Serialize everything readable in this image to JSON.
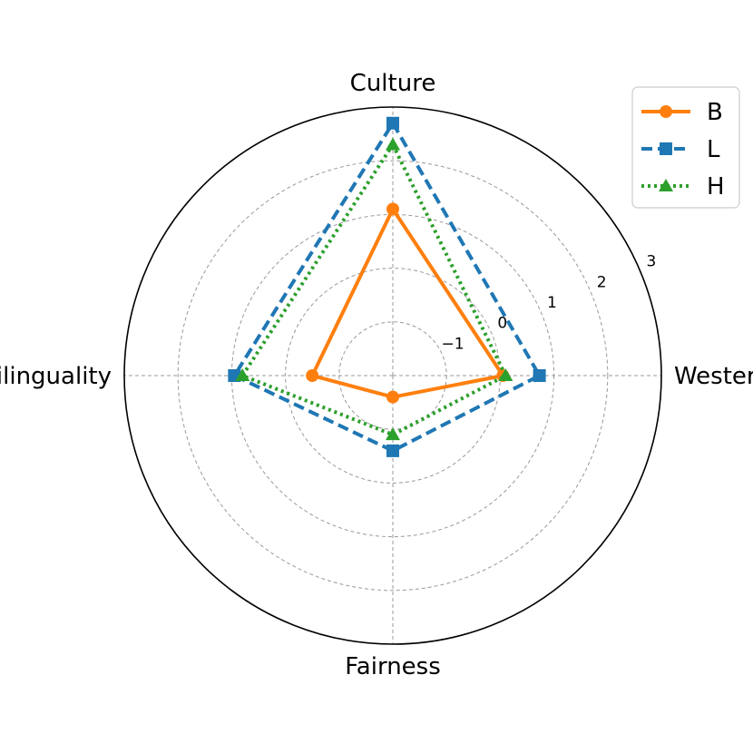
{
  "chart_data": {
    "type": "radar",
    "axes": [
      "Culture",
      "Western",
      "Fairness",
      "Multilinguality"
    ],
    "r_range": [
      -2,
      3
    ],
    "r_ticks": [
      -1,
      0,
      1,
      2,
      3
    ],
    "r_tick_labels": [
      "−1",
      "0",
      "1",
      "2",
      "3"
    ],
    "grid": true,
    "legend_position": "top-right",
    "series": [
      {
        "name": "B",
        "values": [
          1.1,
          0.05,
          -1.6,
          -0.5
        ],
        "color": "#ff7f0e",
        "dash": "solid",
        "marker": "circle"
      },
      {
        "name": "L",
        "values": [
          2.7,
          0.73,
          -0.6,
          0.95
        ],
        "color": "#1f77b4",
        "dash": "dashed",
        "marker": "square"
      },
      {
        "name": "H",
        "values": [
          2.3,
          0.1,
          -0.9,
          0.8
        ],
        "color": "#2ca02c",
        "dash": "dotted",
        "marker": "triangle"
      }
    ]
  }
}
